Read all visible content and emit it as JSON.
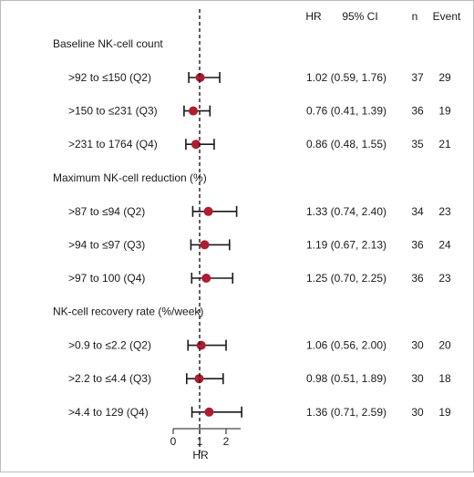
{
  "chart_data": {
    "type": "forest",
    "columns": {
      "hr": "HR",
      "ci": "95% CI",
      "n": "n",
      "event": "Event"
    },
    "xlabel": "HR",
    "xlim": [
      0,
      2.5
    ],
    "xticks": [
      "0",
      "1",
      "2"
    ],
    "reference_line": 1,
    "marker_color": "#b01c30",
    "groups": [
      {
        "title": "Baseline NK-cell count",
        "rows": [
          {
            "label": ">92 to ≤150 (Q2)",
            "hr": 1.02,
            "lo": 0.59,
            "hi": 1.76,
            "ci_text": "1.02 (0.59, 1.76)",
            "n": "37",
            "event": "29"
          },
          {
            "label": ">150 to ≤231 (Q3)",
            "hr": 0.76,
            "lo": 0.41,
            "hi": 1.39,
            "ci_text": "0.76 (0.41, 1.39)",
            "n": "36",
            "event": "19"
          },
          {
            "label": ">231 to 1764 (Q4)",
            "hr": 0.86,
            "lo": 0.48,
            "hi": 1.55,
            "ci_text": "0.86 (0.48, 1.55)",
            "n": "35",
            "event": "21"
          }
        ]
      },
      {
        "title": "Maximum NK-cell reduction (%)",
        "rows": [
          {
            "label": ">87 to ≤94 (Q2)",
            "hr": 1.33,
            "lo": 0.74,
            "hi": 2.4,
            "ci_text": "1.33 (0.74, 2.40)",
            "n": "34",
            "event": "23"
          },
          {
            "label": ">94 to ≤97 (Q3)",
            "hr": 1.19,
            "lo": 0.67,
            "hi": 2.13,
            "ci_text": "1.19 (0.67, 2.13)",
            "n": "36",
            "event": "24"
          },
          {
            "label": ">97 to 100 (Q4)",
            "hr": 1.25,
            "lo": 0.7,
            "hi": 2.25,
            "ci_text": "1.25 (0.70, 2.25)",
            "n": "36",
            "event": "23"
          }
        ]
      },
      {
        "title": "NK-cell recovery rate (%/week)",
        "rows": [
          {
            "label": ">0.9 to ≤2.2 (Q2)",
            "hr": 1.06,
            "lo": 0.56,
            "hi": 2.0,
            "ci_text": "1.06 (0.56, 2.00)",
            "n": "30",
            "event": "20"
          },
          {
            "label": ">2.2 to ≤4.4 (Q3)",
            "hr": 0.98,
            "lo": 0.51,
            "hi": 1.89,
            "ci_text": "0.98 (0.51, 1.89)",
            "n": "30",
            "event": "18"
          },
          {
            "label": ">4.4 to 129 (Q4)",
            "hr": 1.36,
            "lo": 0.71,
            "hi": 2.59,
            "ci_text": "1.36 (0.71, 2.59)",
            "n": "30",
            "event": "19"
          }
        ]
      }
    ]
  }
}
